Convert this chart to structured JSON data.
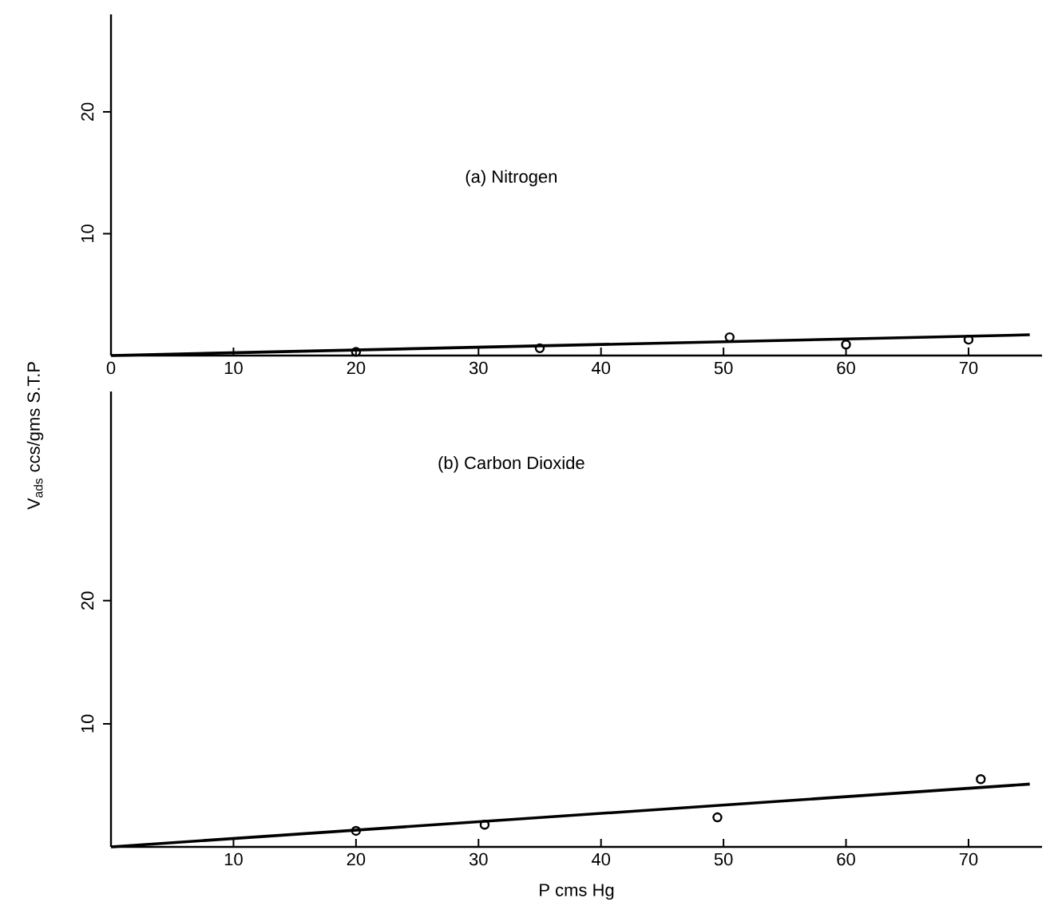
{
  "chart_data": [
    {
      "type": "scatter",
      "title": "(a) Nitrogen",
      "ylabel": "V$_{ads}$ ccs/gms S.T.P",
      "xlim": [
        0,
        76
      ],
      "ylim": [
        0,
        28
      ],
      "xticks": [
        0,
        10,
        20,
        30,
        40,
        50,
        60,
        70
      ],
      "yticks": [
        10,
        20
      ],
      "series": [
        {
          "color": "#000000",
          "marker": "circle",
          "x": [
            20,
            35,
            50.5,
            60,
            70
          ],
          "values": [
            0.3,
            0.6,
            1.5,
            0.9,
            1.3
          ]
        },
        {
          "type": "line",
          "marker": "none",
          "color": "#000000",
          "x": [
            0,
            75
          ],
          "values": [
            0,
            1.7
          ]
        }
      ]
    },
    {
      "type": "scatter",
      "title": "(b) Carbon Dioxide",
      "xlabel": "P cms Hg",
      "xlim": [
        0,
        76
      ],
      "ylim": [
        0,
        37
      ],
      "xticks": [
        10,
        20,
        30,
        40,
        50,
        60,
        70
      ],
      "yticks": [
        10,
        20
      ],
      "series": [
        {
          "color": "#000000",
          "marker": "circle",
          "x": [
            20,
            30.5,
            49.5,
            71
          ],
          "values": [
            1.3,
            1.8,
            2.4,
            5.5
          ]
        },
        {
          "type": "line",
          "marker": "none",
          "color": "#000000",
          "x": [
            0,
            75
          ],
          "values": [
            0,
            5.1
          ]
        }
      ]
    }
  ]
}
